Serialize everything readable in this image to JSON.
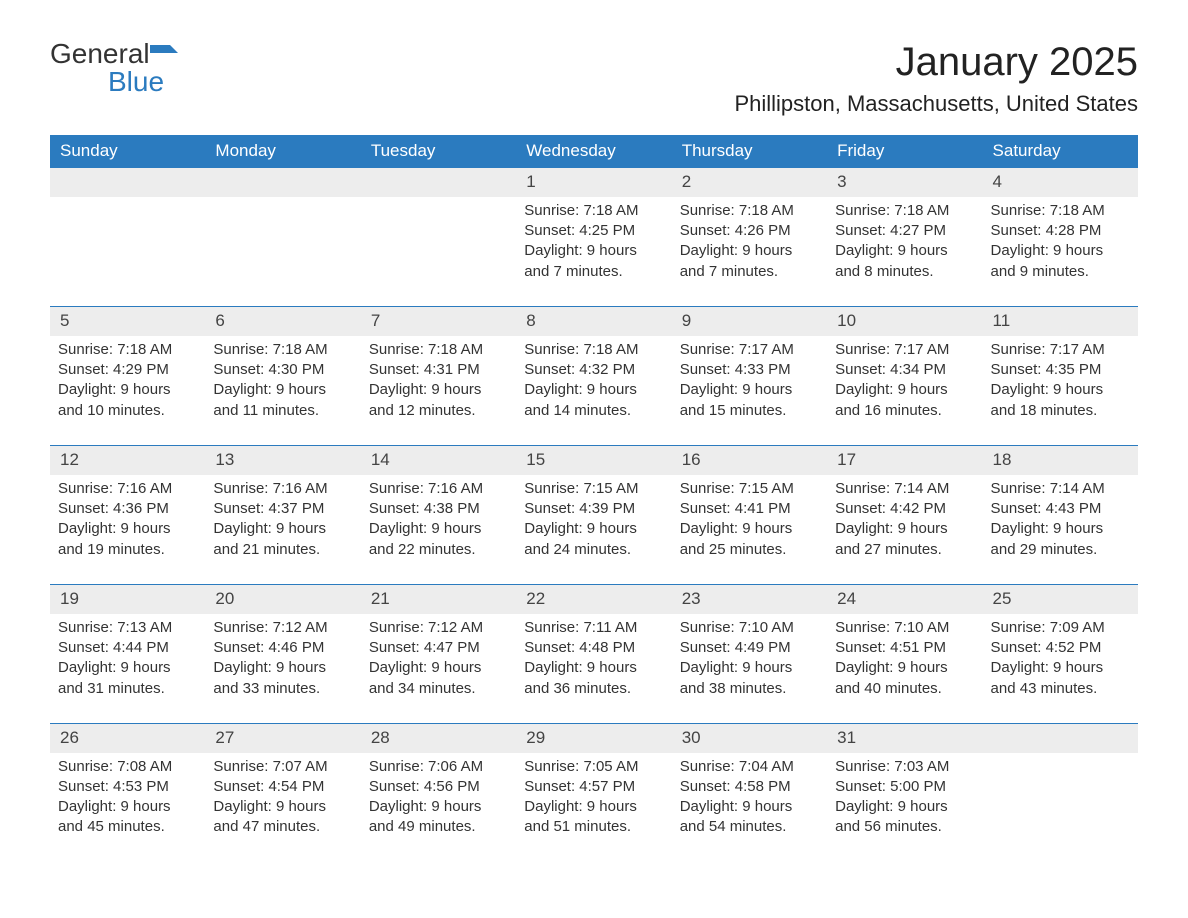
{
  "branding": {
    "logo_part1": "General",
    "logo_part2": "Blue",
    "logo_color": "#2b7bbf"
  },
  "title": "January 2025",
  "location": "Phillipston, Massachusetts, United States",
  "colors": {
    "header_bg": "#2b7bbf",
    "header_text": "#ffffff",
    "daynum_bg": "#ededed",
    "border": "#2b7bbf",
    "text": "#333333"
  },
  "typography": {
    "title_fontsize": 40,
    "location_fontsize": 22,
    "header_fontsize": 17,
    "cell_fontsize": 15
  },
  "structure": "calendar",
  "weekdays": [
    "Sunday",
    "Monday",
    "Tuesday",
    "Wednesday",
    "Thursday",
    "Friday",
    "Saturday"
  ],
  "weeks": [
    {
      "days": [
        null,
        null,
        null,
        {
          "num": "1",
          "sunrise": "Sunrise: 7:18 AM",
          "sunset": "Sunset: 4:25 PM",
          "day1": "Daylight: 9 hours",
          "day2": "and 7 minutes."
        },
        {
          "num": "2",
          "sunrise": "Sunrise: 7:18 AM",
          "sunset": "Sunset: 4:26 PM",
          "day1": "Daylight: 9 hours",
          "day2": "and 7 minutes."
        },
        {
          "num": "3",
          "sunrise": "Sunrise: 7:18 AM",
          "sunset": "Sunset: 4:27 PM",
          "day1": "Daylight: 9 hours",
          "day2": "and 8 minutes."
        },
        {
          "num": "4",
          "sunrise": "Sunrise: 7:18 AM",
          "sunset": "Sunset: 4:28 PM",
          "day1": "Daylight: 9 hours",
          "day2": "and 9 minutes."
        }
      ]
    },
    {
      "days": [
        {
          "num": "5",
          "sunrise": "Sunrise: 7:18 AM",
          "sunset": "Sunset: 4:29 PM",
          "day1": "Daylight: 9 hours",
          "day2": "and 10 minutes."
        },
        {
          "num": "6",
          "sunrise": "Sunrise: 7:18 AM",
          "sunset": "Sunset: 4:30 PM",
          "day1": "Daylight: 9 hours",
          "day2": "and 11 minutes."
        },
        {
          "num": "7",
          "sunrise": "Sunrise: 7:18 AM",
          "sunset": "Sunset: 4:31 PM",
          "day1": "Daylight: 9 hours",
          "day2": "and 12 minutes."
        },
        {
          "num": "8",
          "sunrise": "Sunrise: 7:18 AM",
          "sunset": "Sunset: 4:32 PM",
          "day1": "Daylight: 9 hours",
          "day2": "and 14 minutes."
        },
        {
          "num": "9",
          "sunrise": "Sunrise: 7:17 AM",
          "sunset": "Sunset: 4:33 PM",
          "day1": "Daylight: 9 hours",
          "day2": "and 15 minutes."
        },
        {
          "num": "10",
          "sunrise": "Sunrise: 7:17 AM",
          "sunset": "Sunset: 4:34 PM",
          "day1": "Daylight: 9 hours",
          "day2": "and 16 minutes."
        },
        {
          "num": "11",
          "sunrise": "Sunrise: 7:17 AM",
          "sunset": "Sunset: 4:35 PM",
          "day1": "Daylight: 9 hours",
          "day2": "and 18 minutes."
        }
      ]
    },
    {
      "days": [
        {
          "num": "12",
          "sunrise": "Sunrise: 7:16 AM",
          "sunset": "Sunset: 4:36 PM",
          "day1": "Daylight: 9 hours",
          "day2": "and 19 minutes."
        },
        {
          "num": "13",
          "sunrise": "Sunrise: 7:16 AM",
          "sunset": "Sunset: 4:37 PM",
          "day1": "Daylight: 9 hours",
          "day2": "and 21 minutes."
        },
        {
          "num": "14",
          "sunrise": "Sunrise: 7:16 AM",
          "sunset": "Sunset: 4:38 PM",
          "day1": "Daylight: 9 hours",
          "day2": "and 22 minutes."
        },
        {
          "num": "15",
          "sunrise": "Sunrise: 7:15 AM",
          "sunset": "Sunset: 4:39 PM",
          "day1": "Daylight: 9 hours",
          "day2": "and 24 minutes."
        },
        {
          "num": "16",
          "sunrise": "Sunrise: 7:15 AM",
          "sunset": "Sunset: 4:41 PM",
          "day1": "Daylight: 9 hours",
          "day2": "and 25 minutes."
        },
        {
          "num": "17",
          "sunrise": "Sunrise: 7:14 AM",
          "sunset": "Sunset: 4:42 PM",
          "day1": "Daylight: 9 hours",
          "day2": "and 27 minutes."
        },
        {
          "num": "18",
          "sunrise": "Sunrise: 7:14 AM",
          "sunset": "Sunset: 4:43 PM",
          "day1": "Daylight: 9 hours",
          "day2": "and 29 minutes."
        }
      ]
    },
    {
      "days": [
        {
          "num": "19",
          "sunrise": "Sunrise: 7:13 AM",
          "sunset": "Sunset: 4:44 PM",
          "day1": "Daylight: 9 hours",
          "day2": "and 31 minutes."
        },
        {
          "num": "20",
          "sunrise": "Sunrise: 7:12 AM",
          "sunset": "Sunset: 4:46 PM",
          "day1": "Daylight: 9 hours",
          "day2": "and 33 minutes."
        },
        {
          "num": "21",
          "sunrise": "Sunrise: 7:12 AM",
          "sunset": "Sunset: 4:47 PM",
          "day1": "Daylight: 9 hours",
          "day2": "and 34 minutes."
        },
        {
          "num": "22",
          "sunrise": "Sunrise: 7:11 AM",
          "sunset": "Sunset: 4:48 PM",
          "day1": "Daylight: 9 hours",
          "day2": "and 36 minutes."
        },
        {
          "num": "23",
          "sunrise": "Sunrise: 7:10 AM",
          "sunset": "Sunset: 4:49 PM",
          "day1": "Daylight: 9 hours",
          "day2": "and 38 minutes."
        },
        {
          "num": "24",
          "sunrise": "Sunrise: 7:10 AM",
          "sunset": "Sunset: 4:51 PM",
          "day1": "Daylight: 9 hours",
          "day2": "and 40 minutes."
        },
        {
          "num": "25",
          "sunrise": "Sunrise: 7:09 AM",
          "sunset": "Sunset: 4:52 PM",
          "day1": "Daylight: 9 hours",
          "day2": "and 43 minutes."
        }
      ]
    },
    {
      "days": [
        {
          "num": "26",
          "sunrise": "Sunrise: 7:08 AM",
          "sunset": "Sunset: 4:53 PM",
          "day1": "Daylight: 9 hours",
          "day2": "and 45 minutes."
        },
        {
          "num": "27",
          "sunrise": "Sunrise: 7:07 AM",
          "sunset": "Sunset: 4:54 PM",
          "day1": "Daylight: 9 hours",
          "day2": "and 47 minutes."
        },
        {
          "num": "28",
          "sunrise": "Sunrise: 7:06 AM",
          "sunset": "Sunset: 4:56 PM",
          "day1": "Daylight: 9 hours",
          "day2": "and 49 minutes."
        },
        {
          "num": "29",
          "sunrise": "Sunrise: 7:05 AM",
          "sunset": "Sunset: 4:57 PM",
          "day1": "Daylight: 9 hours",
          "day2": "and 51 minutes."
        },
        {
          "num": "30",
          "sunrise": "Sunrise: 7:04 AM",
          "sunset": "Sunset: 4:58 PM",
          "day1": "Daylight: 9 hours",
          "day2": "and 54 minutes."
        },
        {
          "num": "31",
          "sunrise": "Sunrise: 7:03 AM",
          "sunset": "Sunset: 5:00 PM",
          "day1": "Daylight: 9 hours",
          "day2": "and 56 minutes."
        },
        null
      ]
    }
  ]
}
